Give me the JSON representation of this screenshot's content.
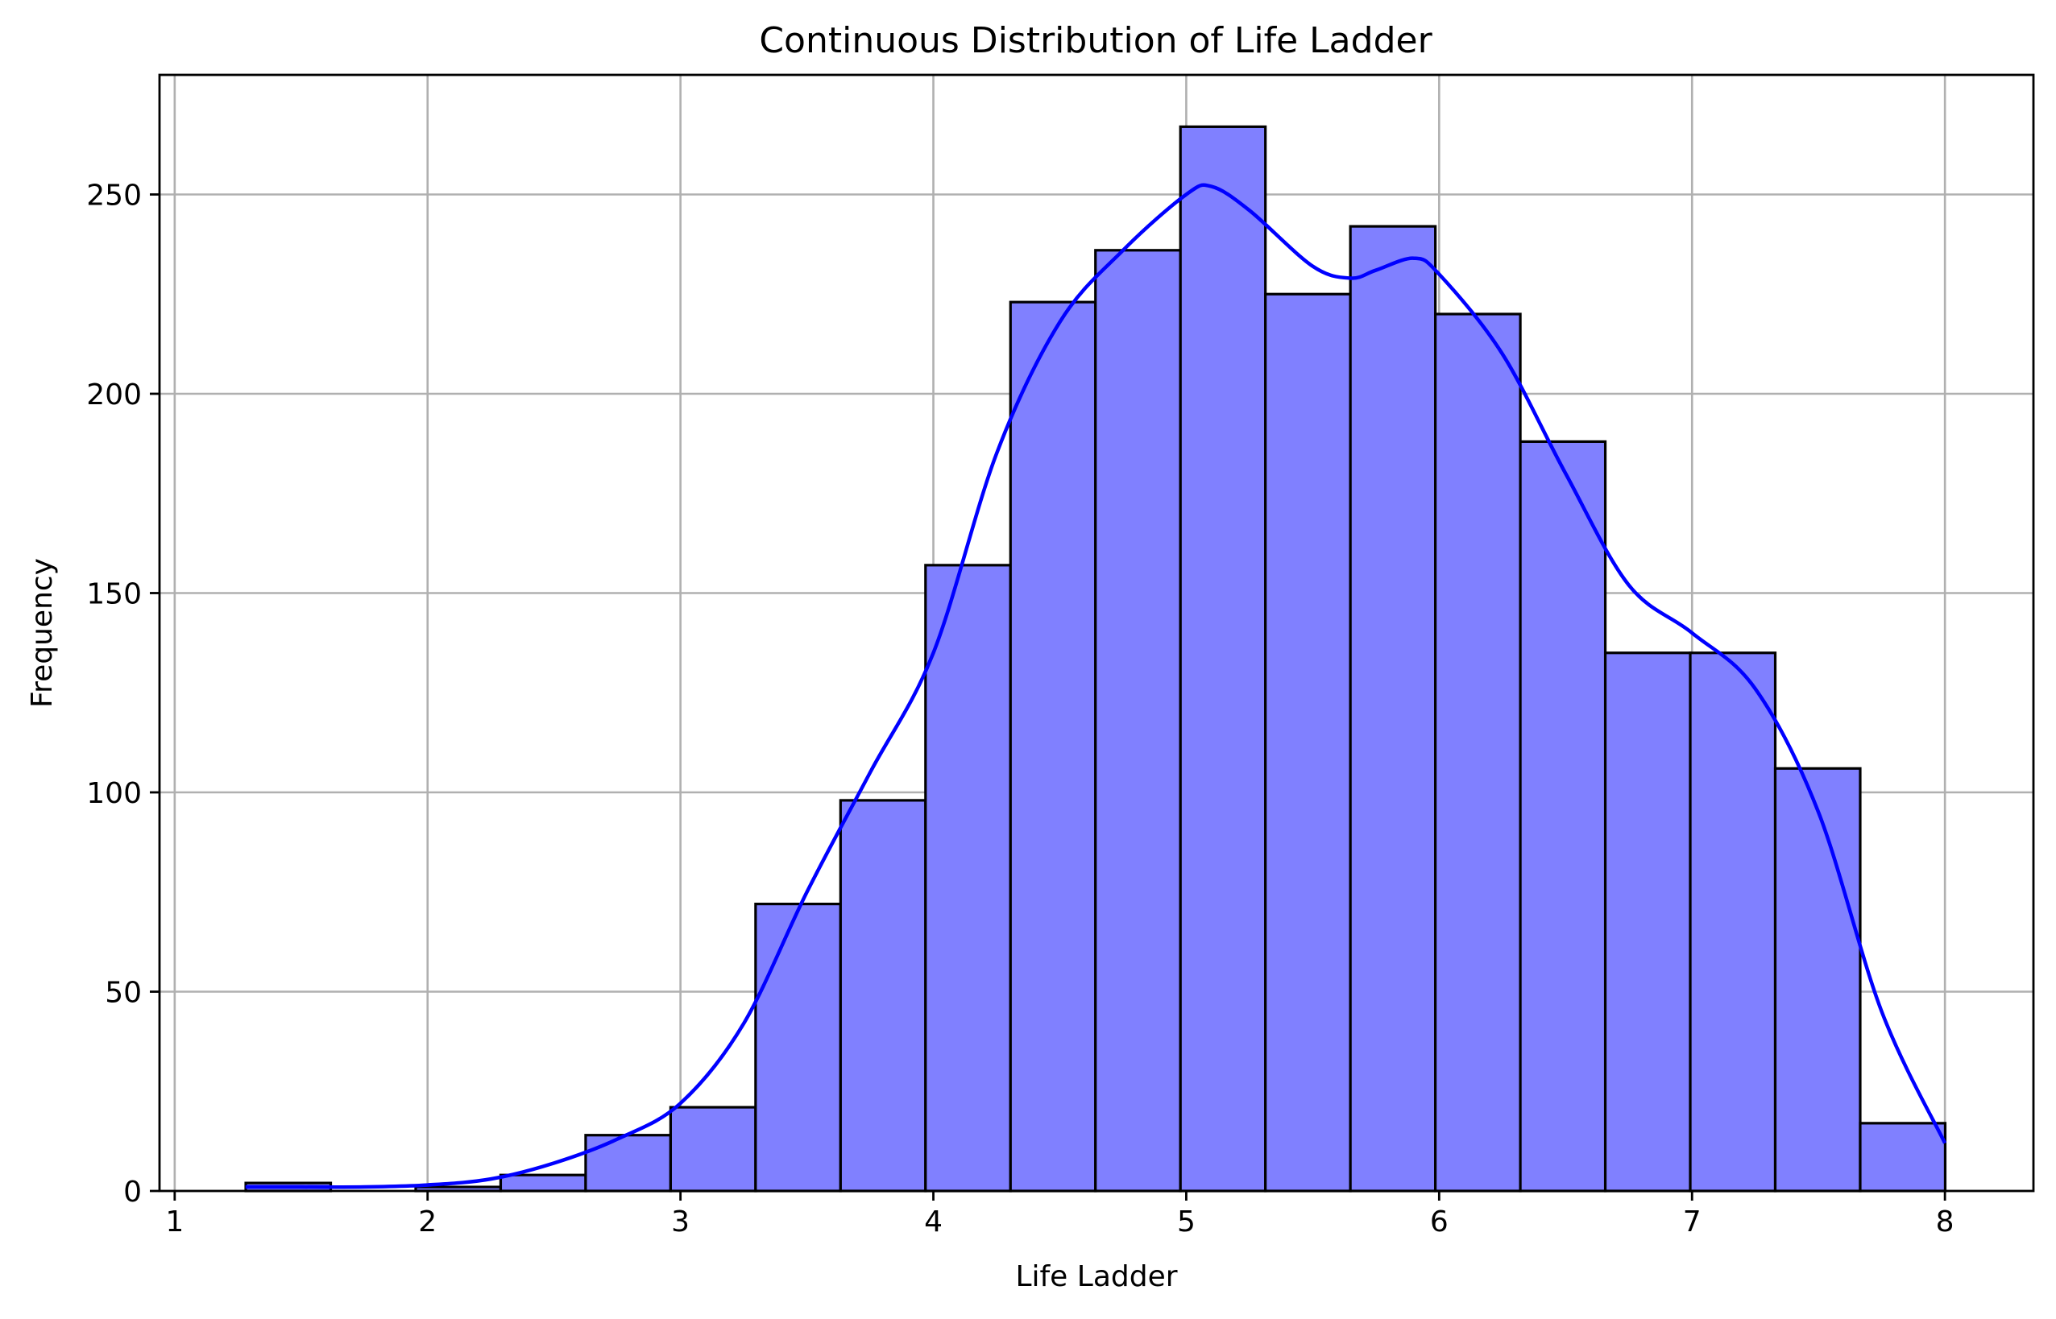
{
  "chart_data": {
    "type": "bar",
    "title": "Continuous Distribution of Life Ladder",
    "xlabel": "Life Ladder",
    "ylabel": "Frequency",
    "xlim": [
      0.94,
      8.35
    ],
    "ylim": [
      0,
      280
    ],
    "xticks": [
      1,
      2,
      3,
      4,
      5,
      6,
      7,
      8
    ],
    "yticks": [
      0,
      50,
      100,
      150,
      200,
      250
    ],
    "grid": true,
    "colors": {
      "bar_fill": "#8080ff",
      "bar_edge": "#000000",
      "kde_line": "#0000ff",
      "grid": "#b0b0b0"
    },
    "histogram": {
      "bin_edges": [
        1.281,
        1.617,
        1.953,
        2.289,
        2.625,
        2.961,
        3.297,
        3.633,
        3.969,
        4.305,
        4.641,
        4.977,
        5.313,
        5.649,
        5.985,
        6.321,
        6.657,
        6.993,
        7.329,
        7.665,
        8.001
      ],
      "counts": [
        2,
        0,
        1,
        4,
        14,
        21,
        72,
        98,
        157,
        223,
        236,
        267,
        225,
        242,
        220,
        188,
        135,
        135,
        106,
        17
      ]
    },
    "series": [
      {
        "type": "line",
        "x": [
          1.28,
          1.5,
          1.75,
          2.0,
          2.25,
          2.5,
          2.75,
          3.0,
          3.25,
          3.5,
          3.75,
          4.0,
          4.25,
          4.5,
          4.75,
          5.0,
          5.1,
          5.25,
          5.5,
          5.65,
          5.75,
          5.9,
          6.0,
          6.25,
          6.5,
          6.75,
          7.0,
          7.25,
          7.5,
          7.75,
          8.0
        ],
        "y": [
          1,
          1,
          1,
          1.5,
          3,
          7,
          13,
          22,
          42,
          75,
          105,
          135,
          185,
          218,
          236,
          250,
          252,
          246,
          232,
          229,
          231,
          234,
          230,
          210,
          180,
          152,
          140,
          126,
          95,
          45,
          12
        ]
      }
    ]
  }
}
